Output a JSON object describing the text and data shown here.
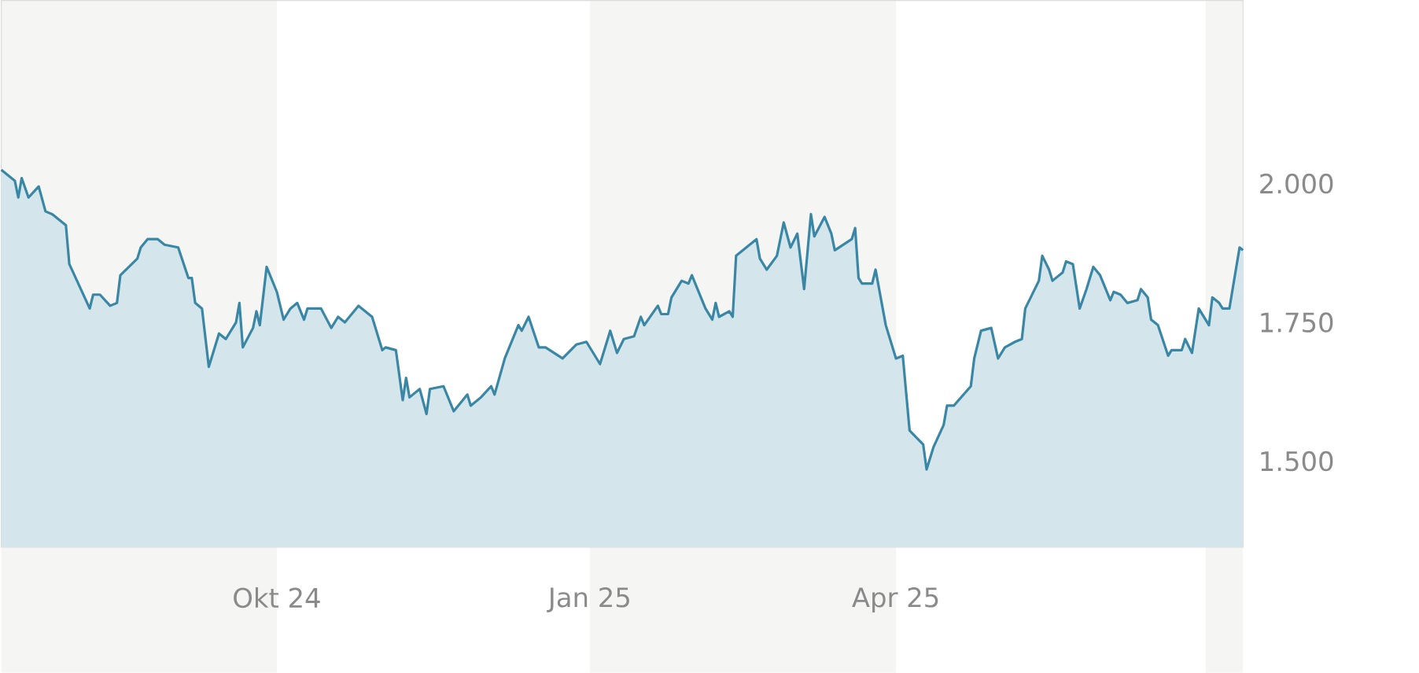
{
  "chart_data": {
    "type": "area",
    "color": "#3a87a5",
    "x": [
      "2024-07-12",
      "2024-07-16",
      "2024-07-17",
      "2024-07-18",
      "2024-07-20",
      "2024-07-23",
      "2024-07-25",
      "2024-07-27",
      "2024-07-31",
      "2024-08-01",
      "2024-08-07",
      "2024-08-08",
      "2024-08-10",
      "2024-08-13",
      "2024-08-15",
      "2024-08-16",
      "2024-08-21",
      "2024-08-22",
      "2024-08-24",
      "2024-08-27",
      "2024-08-29",
      "2024-09-02",
      "2024-09-05",
      "2024-09-06",
      "2024-09-07",
      "2024-09-09",
      "2024-09-11",
      "2024-09-12",
      "2024-09-14",
      "2024-09-16",
      "2024-09-19",
      "2024-09-20",
      "2024-09-21",
      "2024-09-24",
      "2024-09-25",
      "2024-09-26",
      "2024-09-28",
      "2024-10-01",
      "2024-10-03",
      "2024-10-05",
      "2024-10-07",
      "2024-10-09",
      "2024-10-10",
      "2024-10-14",
      "2024-10-17",
      "2024-10-19",
      "2024-10-21",
      "2024-10-25",
      "2024-10-29",
      "2024-11-01",
      "2024-11-02",
      "2024-11-05",
      "2024-11-07",
      "2024-11-08",
      "2024-11-09",
      "2024-11-12",
      "2024-11-14",
      "2024-11-15",
      "2024-11-19",
      "2024-11-22",
      "2024-11-26",
      "2024-11-27",
      "2024-11-30",
      "2024-12-03",
      "2024-12-04",
      "2024-12-07",
      "2024-12-11",
      "2024-12-12",
      "2024-12-14",
      "2024-12-17",
      "2024-12-19",
      "2024-12-24",
      "2024-12-28",
      "2024-12-31",
      "2025-01-04",
      "2025-01-07",
      "2025-01-09",
      "2025-01-11",
      "2025-01-14",
      "2025-01-16",
      "2025-01-17",
      "2025-01-21",
      "2025-01-22",
      "2025-01-24",
      "2025-01-25",
      "2025-01-28",
      "2025-01-30",
      "2025-01-31",
      "2025-02-04",
      "2025-02-06",
      "2025-02-07",
      "2025-02-08",
      "2025-02-11",
      "2025-02-12",
      "2025-02-13",
      "2025-02-19",
      "2025-02-20",
      "2025-02-22",
      "2025-02-25",
      "2025-02-27",
      "2025-03-01",
      "2025-03-03",
      "2025-03-05",
      "2025-03-07",
      "2025-03-08",
      "2025-03-11",
      "2025-03-13",
      "2025-03-14",
      "2025-03-19",
      "2025-03-20",
      "2025-03-21",
      "2025-03-22",
      "2025-03-25",
      "2025-03-26",
      "2025-03-29",
      "2025-04-01",
      "2025-04-03",
      "2025-04-05",
      "2025-04-09",
      "2025-04-10",
      "2025-04-12",
      "2025-04-15",
      "2025-04-16",
      "2025-04-18",
      "2025-04-23",
      "2025-04-24",
      "2025-04-26",
      "2025-04-29",
      "2025-05-01",
      "2025-05-03",
      "2025-05-06",
      "2025-05-08",
      "2025-05-09",
      "2025-05-13",
      "2025-05-14",
      "2025-05-16",
      "2025-05-17",
      "2025-05-20",
      "2025-05-21",
      "2025-05-23",
      "2025-05-25",
      "2025-05-27",
      "2025-05-29",
      "2025-05-31",
      "2025-06-03",
      "2025-06-04",
      "2025-06-06",
      "2025-06-08",
      "2025-06-11",
      "2025-06-12",
      "2025-06-14",
      "2025-06-15",
      "2025-06-17",
      "2025-06-20",
      "2025-06-21",
      "2025-06-24",
      "2025-06-25",
      "2025-06-27",
      "2025-06-29",
      "2025-07-02",
      "2025-07-03",
      "2025-07-05",
      "2025-07-06",
      "2025-07-08",
      "2025-07-11",
      "2025-07-12"
    ],
    "values": [
      2025,
      2005,
      1975,
      2010,
      1975,
      1995,
      1950,
      1945,
      1925,
      1855,
      1775,
      1800,
      1800,
      1780,
      1785,
      1835,
      1865,
      1885,
      1900,
      1900,
      1890,
      1885,
      1830,
      1830,
      1785,
      1775,
      1670,
      1690,
      1730,
      1720,
      1750,
      1785,
      1705,
      1740,
      1770,
      1745,
      1850,
      1805,
      1755,
      1775,
      1785,
      1755,
      1775,
      1775,
      1740,
      1760,
      1750,
      1780,
      1760,
      1700,
      1705,
      1700,
      1610,
      1650,
      1615,
      1630,
      1585,
      1630,
      1635,
      1590,
      1620,
      1600,
      1615,
      1635,
      1620,
      1685,
      1745,
      1735,
      1760,
      1705,
      1705,
      1685,
      1710,
      1715,
      1675,
      1735,
      1695,
      1720,
      1725,
      1760,
      1745,
      1780,
      1765,
      1765,
      1795,
      1825,
      1820,
      1835,
      1775,
      1755,
      1785,
      1760,
      1770,
      1760,
      1870,
      1900,
      1865,
      1845,
      1870,
      1930,
      1885,
      1910,
      1810,
      1945,
      1905,
      1940,
      1910,
      1880,
      1900,
      1920,
      1830,
      1820,
      1820,
      1845,
      1745,
      1685,
      1690,
      1555,
      1530,
      1485,
      1525,
      1565,
      1600,
      1600,
      1635,
      1685,
      1735,
      1740,
      1685,
      1705,
      1715,
      1720,
      1775,
      1825,
      1870,
      1845,
      1825,
      1840,
      1860,
      1855,
      1775,
      1810,
      1850,
      1835,
      1790,
      1805,
      1800,
      1785,
      1790,
      1810,
      1795,
      1755,
      1745,
      1690,
      1700,
      1700,
      1720,
      1695,
      1775,
      1745,
      1795,
      1785,
      1775,
      1775,
      1885,
      1880
    ],
    "xlim": [
      "2024-07-12",
      "2025-07-12"
    ],
    "ylim": [
      1345,
      2330
    ],
    "xticks": [
      {
        "value": "2024-10-01",
        "label": "Okt 24"
      },
      {
        "value": "2025-01-01",
        "label": "Jan 25"
      },
      {
        "value": "2025-04-01",
        "label": "Apr 25"
      }
    ],
    "yticks": [
      {
        "value": 1500,
        "label": "1.500"
      },
      {
        "value": 1750,
        "label": "1.750"
      },
      {
        "value": 2000,
        "label": "2.000"
      }
    ],
    "bands": [
      {
        "axis": "x",
        "from": "2024-07-12",
        "to": "2024-10-01",
        "color": "#f5f5f3"
      },
      {
        "axis": "x",
        "from": "2025-01-01",
        "to": "2025-04-01",
        "color": "#f5f5f3"
      },
      {
        "axis": "x",
        "from": "2025-07-01",
        "to": "2025-07-12",
        "color": "#f5f5f3"
      }
    ]
  }
}
